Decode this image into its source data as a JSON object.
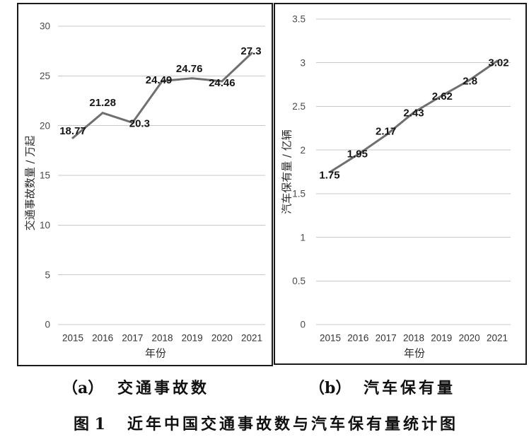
{
  "figure": {
    "label": "图 1",
    "title": "近年中国交通事故数与汽车保有量统计图"
  },
  "panels": [
    {
      "sublabel": "（a）",
      "caption": "交通事故数"
    },
    {
      "sublabel": "（b）",
      "caption": "汽车保有量"
    }
  ],
  "colors": {
    "line": "#6f6f6f",
    "grid": "#c8c8c8",
    "border": "#1a1a1a",
    "text": "#1c1c1c"
  },
  "chart_data": [
    {
      "type": "line",
      "categories": [
        "2015",
        "2016",
        "2017",
        "2018",
        "2019",
        "2020",
        "2021"
      ],
      "values": [
        18.77,
        21.28,
        20.3,
        24.49,
        24.76,
        24.46,
        27.3
      ],
      "data_labels": true,
      "xlabel": "年份",
      "ylabel": "交通事故数量 / 万起",
      "ylim": [
        0,
        30
      ],
      "yticks": [
        0,
        5,
        10,
        15,
        20,
        25,
        30
      ],
      "grid": "horizontal",
      "legend": "none"
    },
    {
      "type": "line",
      "categories": [
        "2015",
        "2016",
        "2017",
        "2018",
        "2019",
        "2020",
        "2021"
      ],
      "values": [
        1.75,
        1.95,
        2.17,
        2.43,
        2.62,
        2.8,
        3.02
      ],
      "data_labels": true,
      "xlabel": "年份",
      "ylabel": "汽车保有量 / 亿辆",
      "ylim": [
        0,
        3.5
      ],
      "yticks": [
        0,
        0.5,
        1,
        1.5,
        2,
        2.5,
        3,
        3.5
      ],
      "grid": "horizontal",
      "legend": "none"
    }
  ]
}
